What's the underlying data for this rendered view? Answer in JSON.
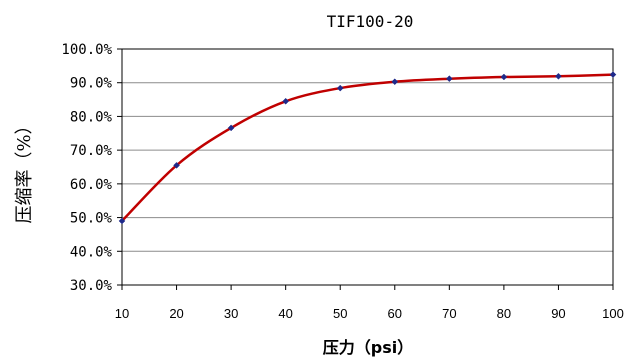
{
  "chart_data": {
    "type": "line",
    "title": "TIF100-20",
    "xlabel": "压力（psi）",
    "ylabel": "压缩率（%）",
    "x": [
      10,
      20,
      30,
      40,
      50,
      60,
      70,
      80,
      90,
      100
    ],
    "xticks": [
      "10",
      "20",
      "30",
      "40",
      "50",
      "60",
      "70",
      "80",
      "90",
      "100"
    ],
    "ylim": [
      30,
      100
    ],
    "yticks": [
      "30.0%",
      "40.0%",
      "50.0%",
      "60.0%",
      "70.0%",
      "80.0%",
      "90.0%",
      "100.0%"
    ],
    "grid": true,
    "series": [
      {
        "values": [
          49.0,
          65.5,
          76.6,
          84.5,
          88.4,
          90.3,
          91.2,
          91.7,
          91.9,
          92.4
        ],
        "line_color": "#c00000",
        "marker_color": "#1f2a8a"
      }
    ]
  }
}
